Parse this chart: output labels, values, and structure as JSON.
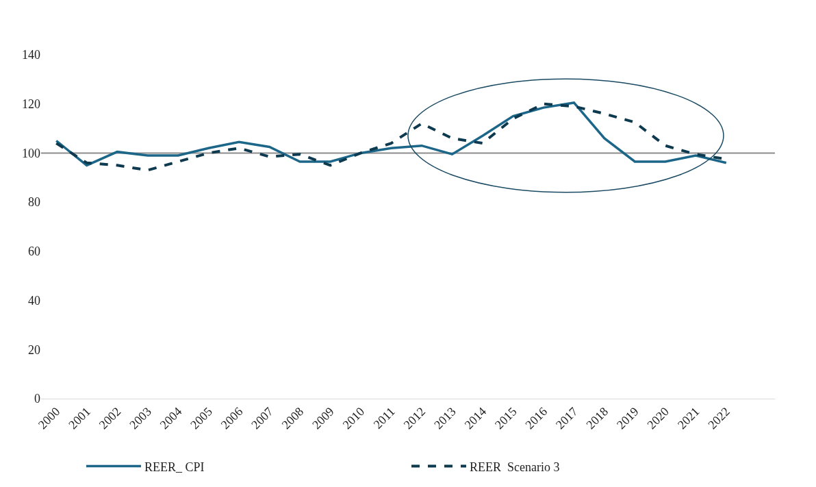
{
  "chart_data": {
    "type": "line",
    "categories": [
      "2000",
      "2001",
      "2002",
      "2003",
      "2004",
      "2005",
      "2006",
      "2007",
      "2008",
      "2009",
      "2010",
      "2011",
      "2012",
      "2013",
      "2014",
      "2015",
      "2016",
      "2017",
      "2018",
      "2019",
      "2020",
      "2021",
      "2022"
    ],
    "series": [
      {
        "name": "REER_ CPI",
        "color": "#1b6689",
        "line_style": "solid",
        "values": [
          105,
          95,
          100.5,
          99,
          99,
          102,
          104.5,
          102.5,
          96.5,
          96.5,
          100,
          102,
          103,
          99.5,
          107,
          115,
          118.5,
          120.5,
          106,
          96.5,
          96.5,
          99,
          96
        ]
      },
      {
        "name": "REER  Scenario 3",
        "color": "#0d3a4f",
        "line_style": "dashed",
        "values": [
          104,
          96,
          95,
          93,
          96.5,
          100,
          102,
          98.5,
          99.5,
          95,
          100,
          104,
          112,
          106,
          104,
          114,
          120,
          119,
          116,
          112.5,
          103,
          99.5,
          97.5
        ]
      }
    ],
    "ylim": [
      0,
      140
    ],
    "yticks": [
      0,
      20,
      40,
      60,
      80,
      100,
      120,
      140
    ],
    "ref_lines": [
      {
        "axis": "y",
        "value": 100,
        "color": "#8c8c8c"
      }
    ],
    "grid": false,
    "legend": "bottom",
    "marker": "none"
  }
}
